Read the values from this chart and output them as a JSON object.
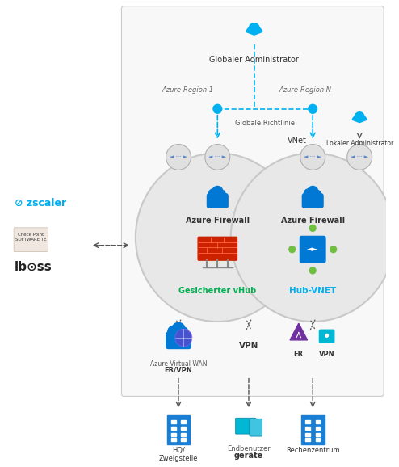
{
  "bg_color": "#ffffff",
  "box_bg": "#f8f8f8",
  "box_border": "#cccccc",
  "admin_label": "Globaler Administrator",
  "local_admin_label": "Lokaler Administrator",
  "region1_label": "Azure-Region 1",
  "regionN_label": "Azure-Region N",
  "global_policy_label": "Globale Richtlinie",
  "vnet_label": "VNet",
  "azure_fw1_label": "Azure Firewall",
  "azure_fw2_label": "Azure Firewall",
  "secured_hub_label": "Gesicherter vHub",
  "hub_vnet_label": "Hub-VNET",
  "secured_hub_color": "#00b050",
  "hub_vnet_color": "#00b0f0",
  "zscaler_color": "#00adef",
  "dashed_blue": "#00b0f0",
  "er_vpn_label": "ER/VPN",
  "er_vpn_sub": "Azure Virtual WAN",
  "vpn_label": "VPN",
  "er_label": "ER",
  "vpn_right_label": "VPN",
  "hq_label": "HQ/\nZweigstelle",
  "user_label1": "Endbenutzer",
  "user_label2": "geräte",
  "datacenter_label": "Rechenzentrum",
  "font_main": 7,
  "font_small": 6,
  "font_tiny": 5.5
}
